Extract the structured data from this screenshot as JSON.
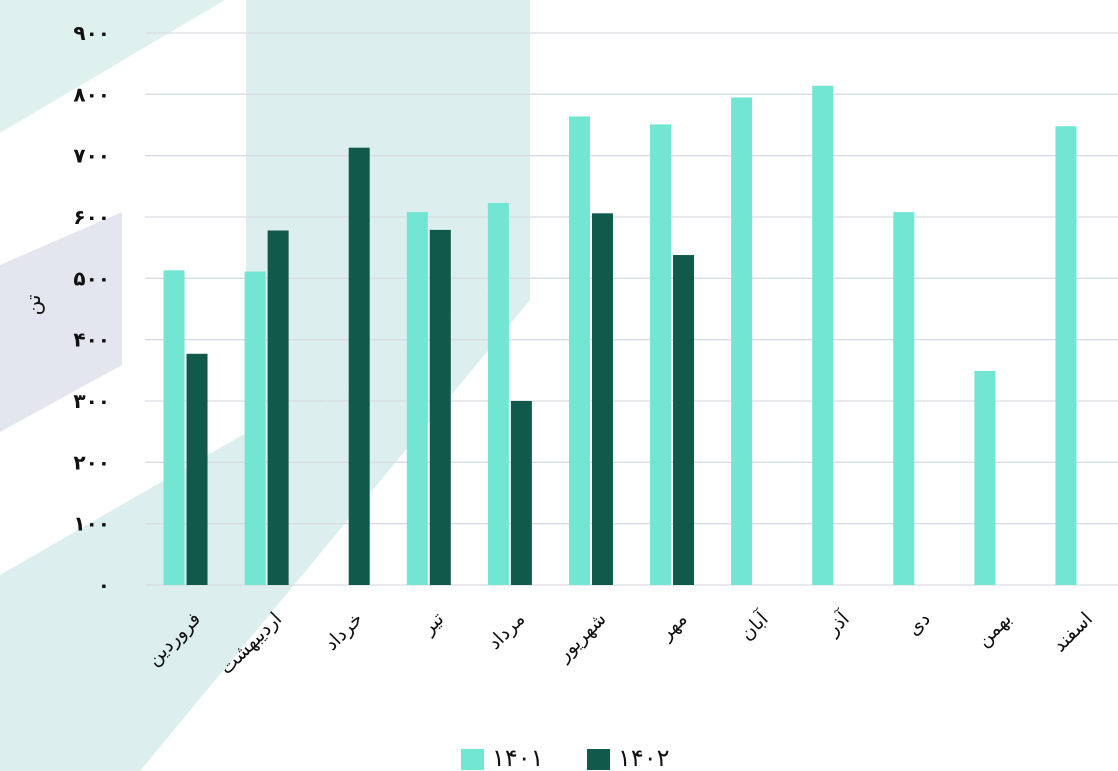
{
  "chart_data": {
    "type": "bar",
    "categories": [
      "فروردین",
      "اردیبهشت",
      "خرداد",
      "تیر",
      "مرداد",
      "شهریور",
      "مهر",
      "آبان",
      "آذر",
      "دی",
      "بهمن",
      "اسفند"
    ],
    "series": [
      {
        "name": "۱۴۰۱",
        "color": "#73e5d3",
        "values": [
          513,
          511,
          null,
          608,
          623,
          764,
          751,
          795,
          814,
          608,
          349,
          748
        ]
      },
      {
        "name": "۱۴۰۲",
        "color": "#115a4b",
        "values": [
          377,
          578,
          713,
          579,
          300,
          606,
          538,
          null,
          null,
          null,
          null,
          null
        ]
      }
    ],
    "ylabel": "تن",
    "ylim": [
      0,
      900
    ],
    "yticks": [
      0,
      100,
      200,
      300,
      400,
      500,
      600,
      700,
      800,
      900
    ],
    "ytick_labels": [
      "۰",
      "۱۰۰",
      "۲۰۰",
      "۳۰۰",
      "۴۰۰",
      "۵۰۰",
      "۶۰۰",
      "۷۰۰",
      "۸۰۰",
      "۹۰۰"
    ],
    "grid": true,
    "legend_position": "bottom"
  }
}
